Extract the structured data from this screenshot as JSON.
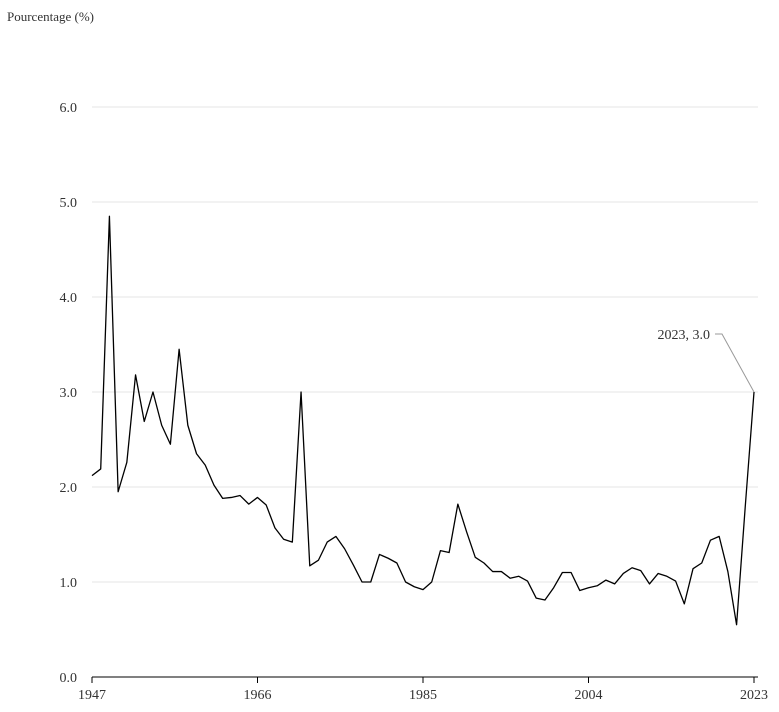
{
  "chart_data": {
    "type": "line",
    "title": "",
    "ylabel": "Pourcentage (%)",
    "xlabel": "",
    "xlim": [
      1947,
      2023
    ],
    "ylim": [
      0,
      6
    ],
    "y_ticks": [
      "0.0",
      "1.0",
      "2.0",
      "3.0",
      "4.0",
      "5.0",
      "6.0"
    ],
    "y_tick_values": [
      0,
      1,
      2,
      3,
      4,
      5,
      6
    ],
    "x_ticks": [
      "1947",
      "1966",
      "1985",
      "2004",
      "2023"
    ],
    "x_tick_values": [
      1947,
      1966,
      1985,
      2004,
      2023
    ],
    "grid": "horizontal",
    "series": [
      {
        "color": "#000000",
        "x": [
          1947,
          1948,
          1949,
          1950,
          1951,
          1952,
          1953,
          1954,
          1955,
          1956,
          1957,
          1958,
          1959,
          1960,
          1961,
          1962,
          1963,
          1964,
          1965,
          1966,
          1967,
          1968,
          1969,
          1970,
          1971,
          1972,
          1973,
          1974,
          1975,
          1976,
          1977,
          1978,
          1979,
          1980,
          1981,
          1982,
          1983,
          1984,
          1985,
          1986,
          1987,
          1988,
          1989,
          1990,
          1991,
          1992,
          1993,
          1994,
          1995,
          1996,
          1997,
          1998,
          1999,
          2000,
          2001,
          2002,
          2003,
          2004,
          2005,
          2006,
          2007,
          2008,
          2009,
          2010,
          2011,
          2012,
          2013,
          2014,
          2015,
          2016,
          2017,
          2018,
          2019,
          2020,
          2021,
          2022,
          2023
        ],
        "y": [
          2.12,
          2.19,
          4.85,
          1.95,
          2.26,
          3.18,
          2.69,
          3.0,
          2.65,
          2.45,
          3.45,
          2.65,
          2.35,
          2.23,
          2.02,
          1.88,
          1.89,
          1.91,
          1.82,
          1.89,
          1.81,
          1.57,
          1.45,
          1.42,
          3.0,
          1.17,
          1.23,
          1.42,
          1.48,
          1.35,
          1.18,
          1.0,
          1.0,
          1.29,
          1.25,
          1.2,
          1.0,
          0.95,
          0.92,
          1.0,
          1.33,
          1.31,
          1.82,
          1.53,
          1.26,
          1.2,
          1.11,
          1.11,
          1.04,
          1.06,
          1.01,
          0.83,
          0.81,
          0.94,
          1.1,
          1.1,
          0.91,
          0.94,
          0.96,
          1.02,
          0.98,
          1.09,
          1.15,
          1.12,
          0.98,
          1.09,
          1.06,
          1.01,
          0.77,
          1.14,
          1.2,
          1.44,
          1.48,
          1.11,
          0.55,
          1.8,
          3.0
        ]
      }
    ],
    "annotations": [
      {
        "text": "2023, 3.0",
        "x": 2023,
        "y": 3.0
      }
    ]
  }
}
